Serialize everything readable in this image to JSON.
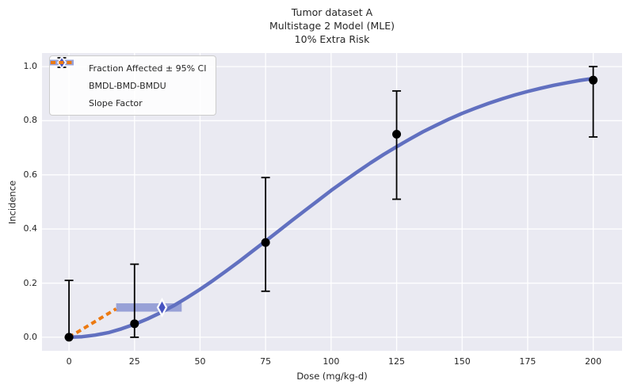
{
  "chart_data": {
    "type": "line",
    "title_lines": [
      "Tumor dataset A",
      "Multistage 2 Model (MLE)",
      "10% Extra Risk"
    ],
    "xlabel": "Dose (mg/kg-d)",
    "ylabel": "Incidence",
    "xlim": [
      -10.3,
      211.0
    ],
    "ylim": [
      -0.05,
      1.05
    ],
    "x_ticks": [
      0,
      25,
      50,
      75,
      100,
      125,
      150,
      175,
      200
    ],
    "x_tick_labels": [
      "0",
      "25",
      "50",
      "75",
      "100",
      "125",
      "150",
      "175",
      "200"
    ],
    "y_ticks": [
      0.0,
      0.2,
      0.4,
      0.6,
      0.8,
      1.0
    ],
    "y_tick_labels": [
      "0.0",
      "0.2",
      "0.4",
      "0.6",
      "0.8",
      "1.0"
    ],
    "grid": true,
    "legend": [
      "Fraction Affected ± 95% CI",
      "BMDL-BMD-BMDU",
      "Slope Factor"
    ],
    "legend_position": "upper-left",
    "colors": {
      "plot_background": "#eaeaf2",
      "gridline": "#ffffff",
      "curve": "#6170c0",
      "interval_band": "#98a1d7",
      "diamond": "#4753c1",
      "slope_factor": "#ec7a12",
      "observations": "#000000",
      "text": "#262626"
    },
    "observations": {
      "name": "Fraction Affected ± 95% CI",
      "points": [
        {
          "dose": 0,
          "incidence": 0.0,
          "ci_lower": 0.0,
          "ci_upper": 0.21
        },
        {
          "dose": 25,
          "incidence": 0.05,
          "ci_lower": 0.0,
          "ci_upper": 0.27
        },
        {
          "dose": 75,
          "incidence": 0.35,
          "ci_lower": 0.17,
          "ci_upper": 0.59
        },
        {
          "dose": 125,
          "incidence": 0.75,
          "ci_lower": 0.51,
          "ci_upper": 0.91
        },
        {
          "dose": 200,
          "incidence": 0.95,
          "ci_lower": 0.74,
          "ci_upper": 1.0
        }
      ]
    },
    "fitted_curve": {
      "name": "Multistage 2 Model (MLE)",
      "x": [
        0,
        5,
        10,
        15,
        20,
        25,
        30,
        35,
        40,
        45,
        50,
        55,
        60,
        65,
        70,
        75,
        80,
        85,
        90,
        95,
        100,
        105,
        110,
        115,
        120,
        125,
        130,
        135,
        140,
        145,
        150,
        155,
        160,
        165,
        170,
        175,
        180,
        185,
        190,
        195,
        200
      ],
      "y": [
        0.0,
        0.002,
        0.008,
        0.017,
        0.031,
        0.048,
        0.068,
        0.091,
        0.117,
        0.146,
        0.177,
        0.21,
        0.245,
        0.281,
        0.318,
        0.355,
        0.393,
        0.431,
        0.468,
        0.505,
        0.542,
        0.577,
        0.611,
        0.644,
        0.675,
        0.704,
        0.732,
        0.759,
        0.783,
        0.806,
        0.827,
        0.846,
        0.864,
        0.88,
        0.895,
        0.908,
        0.92,
        0.931,
        0.94,
        0.949,
        0.956
      ]
    },
    "bmd_interval": {
      "name": "BMDL-BMD-BMDU",
      "bmdl": 18.0,
      "bmd": 35.5,
      "bmdu": 43.0,
      "bmr_incidence": 0.11
    },
    "slope_factor": {
      "name": "Slope Factor",
      "from": [
        0,
        0.0
      ],
      "to": [
        18.0,
        0.105
      ]
    }
  }
}
